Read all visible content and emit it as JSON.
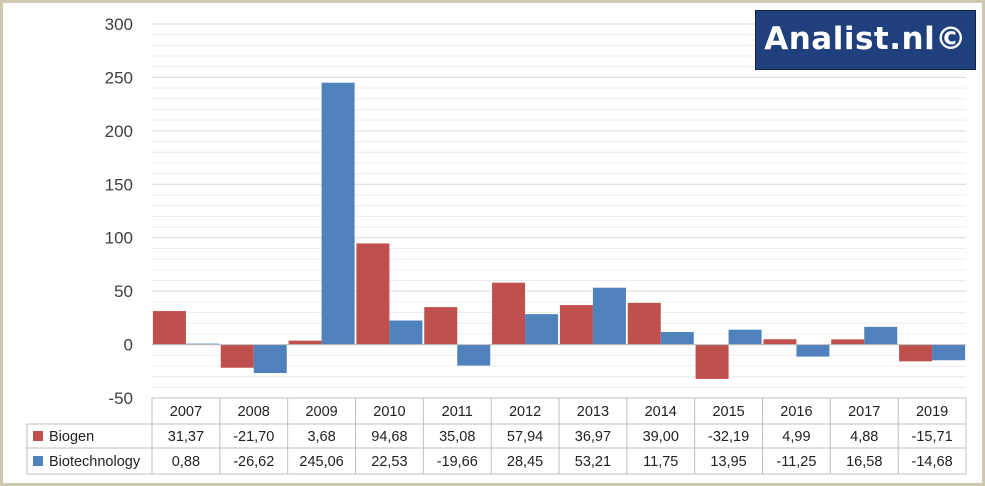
{
  "watermark": "Analist.nl©",
  "chart_data": {
    "type": "bar",
    "categories": [
      "2007",
      "2008",
      "2009",
      "2010",
      "2011",
      "2012",
      "2013",
      "2014",
      "2015",
      "2016",
      "2017",
      "2019"
    ],
    "series": [
      {
        "name": "Biogen",
        "color": "#c0504d",
        "values": [
          31.37,
          -21.7,
          3.68,
          94.68,
          35.08,
          57.94,
          36.97,
          39.0,
          -32.19,
          4.99,
          4.88,
          -15.71
        ],
        "labels": [
          "31,37",
          "-21,70",
          "3,68",
          "94,68",
          "35,08",
          "57,94",
          "36,97",
          "39,00",
          "-32,19",
          "4,99",
          "4,88",
          "-15,71"
        ]
      },
      {
        "name": "Biotechnology",
        "color": "#4f81bd",
        "values": [
          0.88,
          -26.62,
          245.06,
          22.53,
          -19.66,
          28.45,
          53.21,
          11.75,
          13.95,
          -11.25,
          16.58,
          -14.68
        ],
        "labels": [
          "0,88",
          "-26,62",
          "245,06",
          "22,53",
          "-19,66",
          "28,45",
          "53,21",
          "11,75",
          "13,95",
          "-11,25",
          "16,58",
          "-14,68"
        ]
      }
    ],
    "yticks": [
      "300",
      "250",
      "200",
      "150",
      "100",
      "50",
      "0",
      "-50"
    ],
    "ylim": [
      -50,
      300
    ],
    "grid": true,
    "legend": "data-table",
    "title": "",
    "xlabel": "",
    "ylabel": ""
  }
}
